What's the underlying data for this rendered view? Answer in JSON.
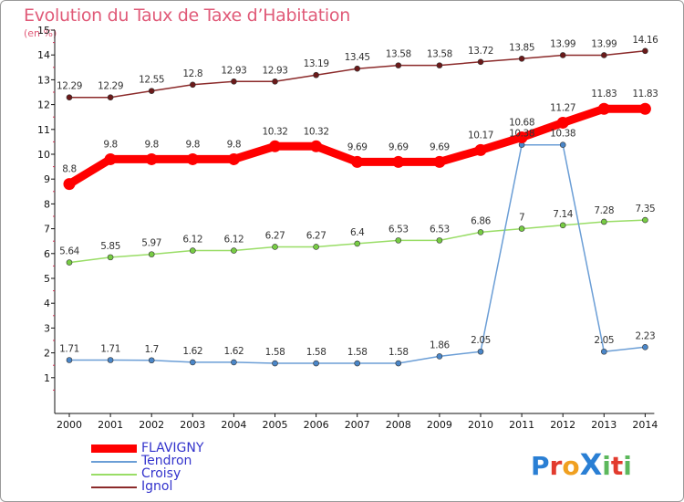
{
  "chart_data": {
    "type": "line",
    "title": "Evolution du Taux de Taxe d’Habitation",
    "unit": "(en %)",
    "x": [
      2000,
      2001,
      2002,
      2003,
      2004,
      2005,
      2006,
      2007,
      2008,
      2009,
      2010,
      2011,
      2012,
      2013,
      2014
    ],
    "x_tick_labels": [
      "2000",
      "2001",
      "2002",
      "2003",
      "2004",
      "2005",
      "2006",
      "2007",
      "2008",
      "2009",
      "2010",
      "2011",
      "2012",
      "2013",
      "2014"
    ],
    "ylim": [
      0,
      15
    ],
    "y_tick_labels": [
      "1",
      "2",
      "3",
      "4",
      "5",
      "6",
      "7",
      "8",
      "9",
      "10",
      "11",
      "12",
      "13",
      "14",
      "15"
    ],
    "grid": false,
    "legend_position": "bottom-left",
    "series": [
      {
        "name": "FLAVIGNY",
        "color": "#ff0000",
        "label_color": "#3333cc",
        "values": [
          8.8,
          9.8,
          9.8,
          9.8,
          9.8,
          10.32,
          10.32,
          9.69,
          9.69,
          9.69,
          10.17,
          10.68,
          11.27,
          11.83,
          11.83
        ],
        "labels": [
          "8.8",
          "9.8",
          "9.8",
          "9.8",
          "9.8",
          "10.32",
          "10.32",
          "9.69",
          "9.69",
          "9.69",
          "10.17",
          "10.68",
          "11.27",
          "11.83",
          "11.83"
        ]
      },
      {
        "name": "Tendron",
        "color": "#6b9ed6",
        "label_color": "#3333cc",
        "values": [
          1.71,
          1.71,
          1.7,
          1.62,
          1.62,
          1.58,
          1.58,
          1.58,
          1.58,
          1.86,
          2.05,
          10.38,
          10.38,
          2.05,
          2.23
        ],
        "labels": [
          "1.71",
          "1.71",
          "1.7",
          "1.62",
          "1.62",
          "1.58",
          "1.58",
          "1.58",
          "1.58",
          "1.86",
          "2.05",
          "10.38",
          "10.38",
          "2.05",
          "2.23"
        ]
      },
      {
        "name": "Croisy",
        "color": "#99dd66",
        "label_color": "#3333cc",
        "values": [
          5.64,
          5.85,
          5.97,
          6.12,
          6.12,
          6.27,
          6.27,
          6.4,
          6.53,
          6.53,
          6.86,
          7,
          7.14,
          7.28,
          7.35
        ],
        "labels": [
          "5.64",
          "5.85",
          "5.97",
          "6.12",
          "6.12",
          "6.27",
          "6.27",
          "6.4",
          "6.53",
          "6.53",
          "6.86",
          "7",
          "7.14",
          "7.28",
          "7.35"
        ]
      },
      {
        "name": "Ignol",
        "color": "#8b2a2a",
        "label_color": "#3333cc",
        "values": [
          12.29,
          12.29,
          12.55,
          12.8,
          12.93,
          12.93,
          13.19,
          13.45,
          13.58,
          13.58,
          13.72,
          13.85,
          13.99,
          13.99,
          14.16
        ],
        "labels": [
          "12.29",
          "12.29",
          "12.55",
          "12.8",
          "12.93",
          "12.93",
          "13.19",
          "13.45",
          "13.58",
          "13.58",
          "13.72",
          "13.85",
          "13.99",
          "13.99",
          "14.16"
        ]
      }
    ]
  },
  "logo": {
    "text": "ProXiti",
    "letters": [
      "P",
      "r",
      "o",
      "X",
      "i",
      "t",
      "i"
    ],
    "colors": [
      "#2a7fd4",
      "#e23b2e",
      "#f0a020",
      "#2a7fd4",
      "#5cb85c",
      "#e23b2e",
      "#5cb85c"
    ]
  },
  "colors": {
    "title": "#e05a78",
    "axis": "#111111",
    "frame": "#9a9a9a"
  }
}
